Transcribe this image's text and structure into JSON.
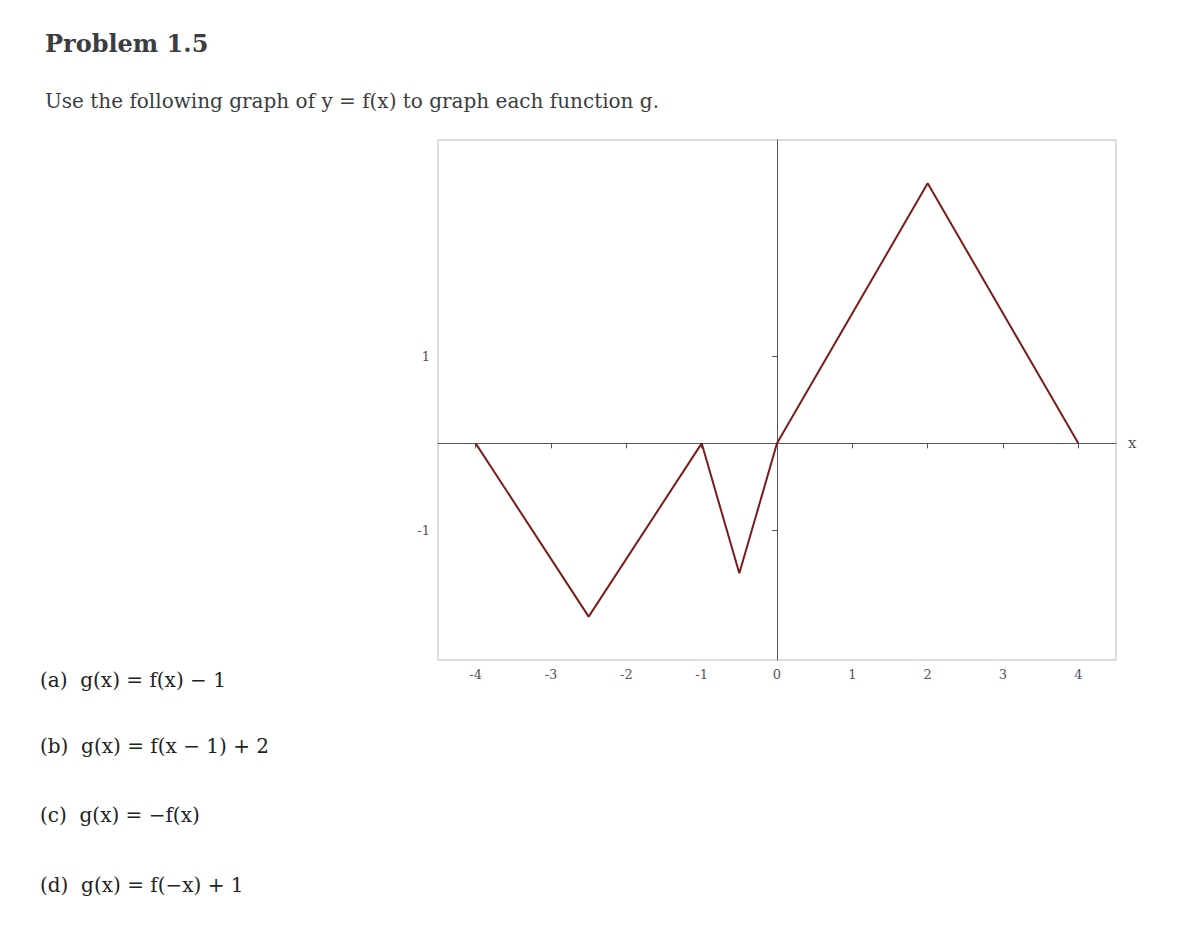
{
  "chart_data": {
    "type": "line",
    "title": "Problem 1.5",
    "subtitle": "Use the following graph of y = f(x) to graph each function g.",
    "xlabel": "x",
    "x": [
      -4,
      -2.5,
      -1,
      -0.5,
      0,
      2,
      4
    ],
    "values": [
      0,
      -2,
      0,
      -1.5,
      0,
      3,
      0
    ],
    "color": "#7B1C1C",
    "xlim": [
      -4.5,
      4.5
    ],
    "ylim": [
      -2.5,
      3.5
    ],
    "xticks": [
      -4,
      -3,
      -2,
      -1,
      0,
      1,
      2,
      3,
      4
    ],
    "yticks": [
      -1,
      1
    ],
    "grid": false,
    "annotations": [
      "(a)  g(x) = f(x) − 1",
      "(b)  g(x) = f(x − 1) + 2",
      "(c)  g(x) = −f(x)",
      "(d)  g(x) = f(−x) + 1"
    ]
  }
}
